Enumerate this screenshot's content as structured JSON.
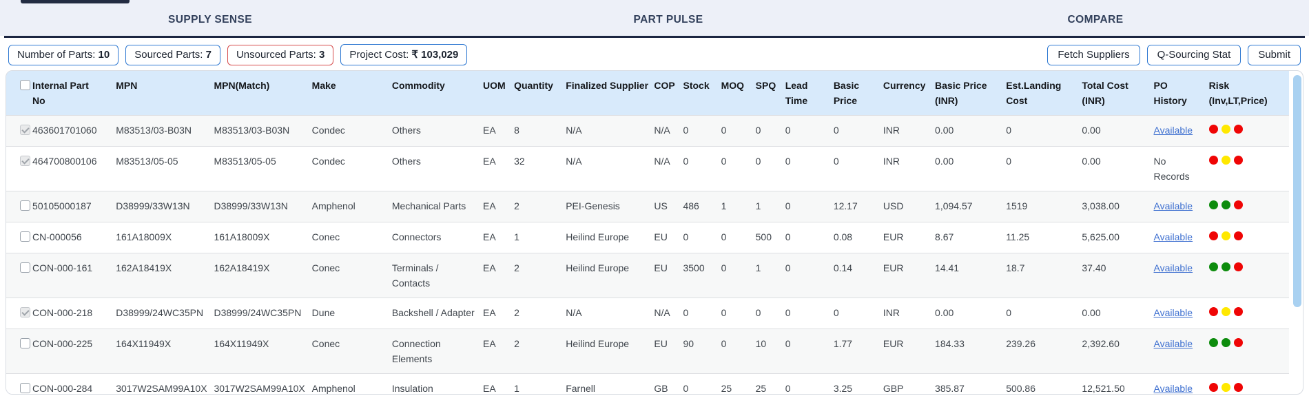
{
  "nav": {
    "items": [
      "SUPPLY SENSE",
      "PART PULSE",
      "COMPARE"
    ]
  },
  "toolbar": {
    "stats": [
      {
        "label": "Number of Parts:",
        "value": "10",
        "style": "blue"
      },
      {
        "label": "Sourced Parts:",
        "value": "7",
        "style": "blue"
      },
      {
        "label": "Unsourced Parts:",
        "value": "3",
        "style": "red"
      },
      {
        "label": "Project Cost:",
        "value": "₹ 103,029",
        "style": "blue"
      }
    ],
    "buttons": [
      "Fetch Suppliers",
      "Q-Sourcing Stat",
      "Submit"
    ]
  },
  "colors": {
    "accent_blue": "#2f79d2",
    "badge_red": "#d64a4a",
    "header_bg": "#d8eafb",
    "link": "#3d6fd0",
    "risk": {
      "red": "#ef0505",
      "yellow": "#ffe800",
      "green": "#0d8c0d"
    }
  },
  "table": {
    "columns": [
      "Internal Part No",
      "MPN",
      "MPN(Match)",
      "Make",
      "Commodity",
      "UOM",
      "Quantity",
      "Finalized Supplier",
      "COP",
      "Stock",
      "MOQ",
      "SPQ",
      "Lead Time",
      "Basic Price",
      "Currency",
      "Basic Price (INR)",
      "Est.Landing Cost",
      "Total Cost (INR)",
      "PO History",
      "Risk (Inv,LT,Price)"
    ],
    "rows": [
      {
        "checkbox": "checked-disabled",
        "cells": [
          "463601701060",
          "M83513/03-B03N",
          "M83513/03-B03N",
          "Condec",
          "Others",
          "EA",
          "8",
          "N/A",
          "N/A",
          "0",
          "0",
          "0",
          "0",
          "0",
          "INR",
          "0.00",
          "0",
          "0.00"
        ],
        "po": {
          "text": "Available",
          "link": true
        },
        "risk": [
          "red",
          "yellow",
          "red"
        ]
      },
      {
        "checkbox": "checked-disabled",
        "cells": [
          "464700800106",
          "M83513/05-05",
          "M83513/05-05",
          "Condec",
          "Others",
          "EA",
          "32",
          "N/A",
          "N/A",
          "0",
          "0",
          "0",
          "0",
          "0",
          "INR",
          "0.00",
          "0",
          "0.00"
        ],
        "po": {
          "text": "No Records",
          "link": false
        },
        "risk": [
          "red",
          "yellow",
          "red"
        ]
      },
      {
        "checkbox": "unchecked",
        "cells": [
          "50105000187",
          "D38999/33W13N",
          "D38999/33W13N",
          "Amphenol",
          "Mechanical Parts",
          "EA",
          "2",
          "PEI-Genesis",
          "US",
          "486",
          "1",
          "1",
          "0",
          "12.17",
          "USD",
          "1,094.57",
          "1519",
          "3,038.00"
        ],
        "po": {
          "text": "Available",
          "link": true
        },
        "risk": [
          "green",
          "green",
          "red"
        ]
      },
      {
        "checkbox": "unchecked",
        "cells": [
          "CN-000056",
          "161A18009X",
          "161A18009X",
          "Conec",
          "Connectors",
          "EA",
          "1",
          "Heilind Europe",
          "EU",
          "0",
          "0",
          "500",
          "0",
          "0.08",
          "EUR",
          "8.67",
          "11.25",
          "5,625.00"
        ],
        "po": {
          "text": "Available",
          "link": true
        },
        "risk": [
          "red",
          "yellow",
          "red"
        ]
      },
      {
        "checkbox": "unchecked",
        "cells": [
          "CON-000-161",
          "162A18419X",
          "162A18419X",
          "Conec",
          "Terminals / Contacts",
          "EA",
          "2",
          "Heilind Europe",
          "EU",
          "3500",
          "0",
          "1",
          "0",
          "0.14",
          "EUR",
          "14.41",
          "18.7",
          "37.40"
        ],
        "po": {
          "text": "Available",
          "link": true
        },
        "risk": [
          "green",
          "green",
          "red"
        ]
      },
      {
        "checkbox": "checked-disabled",
        "cells": [
          "CON-000-218",
          "D38999/24WC35PN",
          "D38999/24WC35PN",
          "Dune",
          "Backshell / Adapter",
          "EA",
          "2",
          "N/A",
          "N/A",
          "0",
          "0",
          "0",
          "0",
          "0",
          "INR",
          "0.00",
          "0",
          "0.00"
        ],
        "po": {
          "text": "Available",
          "link": true
        },
        "risk": [
          "red",
          "yellow",
          "red"
        ]
      },
      {
        "checkbox": "unchecked",
        "cells": [
          "CON-000-225",
          "164X11949X",
          "164X11949X",
          "Conec",
          "Connection Elements",
          "EA",
          "2",
          "Heilind Europe",
          "EU",
          "90",
          "0",
          "10",
          "0",
          "1.77",
          "EUR",
          "184.33",
          "239.26",
          "2,392.60"
        ],
        "po": {
          "text": "Available",
          "link": true
        },
        "risk": [
          "green",
          "green",
          "red"
        ]
      },
      {
        "checkbox": "unchecked",
        "cells": [
          "CON-000-284",
          "3017W2SAM99A10X",
          "3017W2SAM99A10X",
          "Amphenol",
          "Insulation",
          "EA",
          "1",
          "Farnell",
          "GB",
          "0",
          "25",
          "25",
          "0",
          "3.25",
          "GBP",
          "385.87",
          "500.86",
          "12,521.50"
        ],
        "po": {
          "text": "Available",
          "link": true
        },
        "risk": [
          "red",
          "yellow",
          "red"
        ]
      }
    ]
  }
}
